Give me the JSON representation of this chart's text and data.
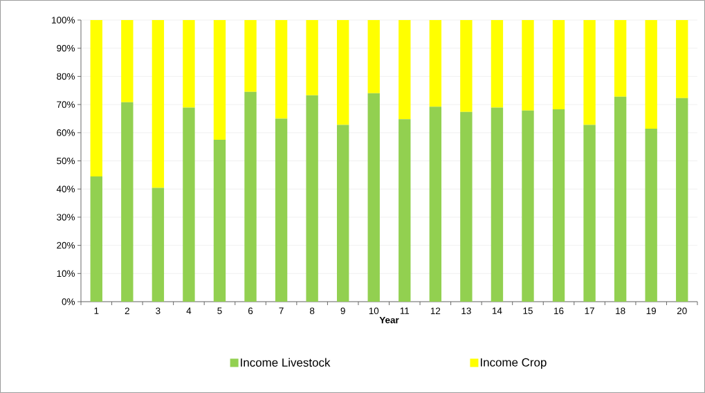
{
  "chart_data": {
    "type": "bar",
    "stacked": true,
    "xlabel": "Year",
    "categories": [
      "1",
      "2",
      "3",
      "4",
      "5",
      "6",
      "7",
      "8",
      "9",
      "10",
      "11",
      "12",
      "13",
      "14",
      "15",
      "16",
      "17",
      "18",
      "19",
      "20"
    ],
    "series": [
      {
        "name": "Income Livestock",
        "color": "#92d050",
        "values": [
          44.5,
          70.8,
          40.4,
          68.9,
          57.5,
          74.5,
          65.0,
          73.3,
          62.8,
          74.0,
          64.8,
          69.2,
          67.4,
          68.9,
          67.9,
          68.3,
          62.8,
          72.8,
          61.4,
          72.3
        ]
      },
      {
        "name": "Income Crop",
        "color": "#ffff00",
        "values": [
          55.5,
          29.2,
          59.6,
          31.1,
          42.5,
          25.5,
          35.0,
          26.7,
          37.2,
          26.0,
          35.2,
          30.8,
          32.6,
          31.1,
          32.1,
          31.7,
          37.2,
          27.2,
          38.6,
          27.7
        ]
      }
    ],
    "ylim": [
      0,
      100
    ],
    "yticks": [
      {
        "value": 0,
        "label": "0%"
      },
      {
        "value": 10,
        "label": "10%"
      },
      {
        "value": 20,
        "label": "20%"
      },
      {
        "value": 30,
        "label": "30%"
      },
      {
        "value": 40,
        "label": "40%"
      },
      {
        "value": 50,
        "label": "50%"
      },
      {
        "value": 60,
        "label": "60%"
      },
      {
        "value": 70,
        "label": "70%"
      },
      {
        "value": 80,
        "label": "80%"
      },
      {
        "value": 90,
        "label": "90%"
      },
      {
        "value": 100,
        "label": "100%"
      }
    ],
    "grid": "y",
    "legend": "bottom"
  }
}
